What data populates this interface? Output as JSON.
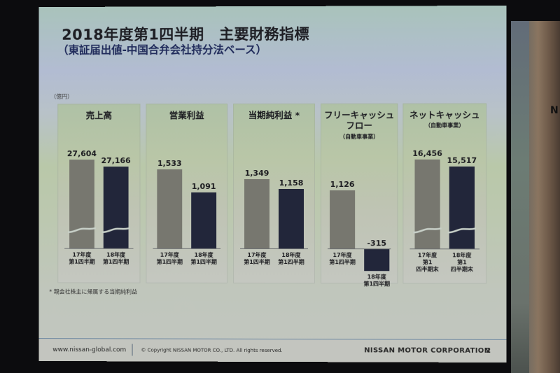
{
  "slide": {
    "title": "2018年度第1四半期　主要財務指標",
    "subtitle": "（東証届出値-中国合弁会社持分法ベース）",
    "unit": "（億円）",
    "footnote": "* 親会社株主に帰属する当期純利益",
    "footer": {
      "url": "www.nissan-global.com",
      "copyright": "© Copyright NISSAN MOTOR CO., LTD. All rights reserved.",
      "corporation": "NISSAN MOTOR CORPORATION",
      "page_number": "2"
    },
    "background_sign_letter": "N"
  },
  "colors": {
    "prev_bar": "#77776f",
    "curr_bar": "#22263a"
  },
  "chart_data": {
    "type": "bar",
    "title": "2018年度第1四半期　主要財務指標",
    "subtitle": "（東証届出値-中国合弁会社持分法ベース）",
    "ylabel": "億円",
    "series_names": [
      "17年度",
      "18年度"
    ],
    "panels": [
      {
        "name": "売上高",
        "subtitle": "",
        "categories": [
          "17年度\n第1四半期",
          "18年度\n第1四半期"
        ],
        "values": [
          27604,
          27166
        ],
        "labels": [
          "27,604",
          "27,166"
        ],
        "axis_break": true
      },
      {
        "name": "営業利益",
        "subtitle": "",
        "categories": [
          "17年度\n第1四半期",
          "18年度\n第1四半期"
        ],
        "values": [
          1533,
          1091
        ],
        "labels": [
          "1,533",
          "1,091"
        ],
        "axis_break": false
      },
      {
        "name": "当期純利益 *",
        "subtitle": "",
        "categories": [
          "17年度\n第1四半期",
          "18年度\n第1四半期"
        ],
        "values": [
          1349,
          1158
        ],
        "labels": [
          "1,349",
          "1,158"
        ],
        "axis_break": false
      },
      {
        "name": "フリーキャッシュ\nフロー",
        "subtitle": "（自動車事業）",
        "categories": [
          "17年度\n第1四半期",
          "18年度\n第1四半期"
        ],
        "values": [
          1126,
          -315
        ],
        "labels": [
          "1,126",
          "-315"
        ],
        "axis_break": false
      },
      {
        "name": "ネットキャッシュ",
        "subtitle": "（自動車事業）",
        "categories": [
          "17年度\n第1\n四半期末",
          "18年度\n第1\n四半期末"
        ],
        "values": [
          16456,
          15517
        ],
        "labels": [
          "16,456",
          "15,517"
        ],
        "axis_break": true
      }
    ]
  }
}
